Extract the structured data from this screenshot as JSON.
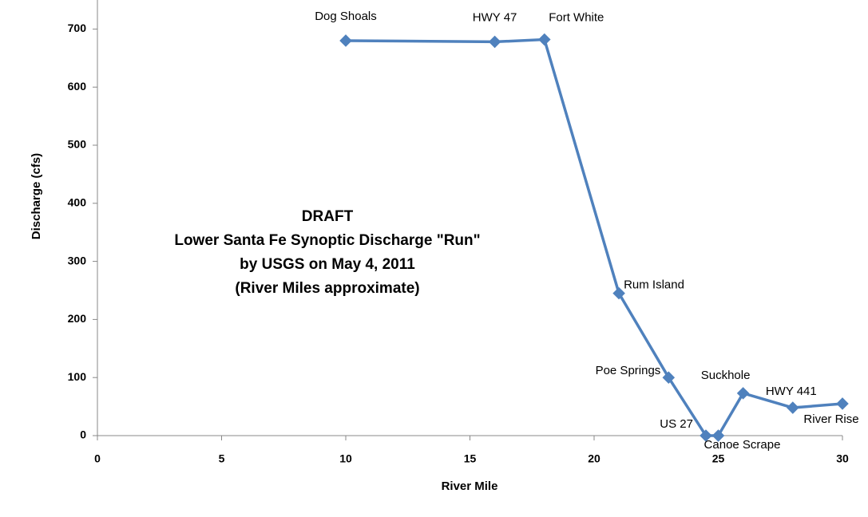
{
  "chart_data": {
    "type": "line",
    "annotation": [
      "DRAFT",
      "Lower Santa Fe Synoptic Discharge \"Run\"",
      "by USGS on May 4, 2011",
      "(River Miles approximate)"
    ],
    "x_label": "River Mile",
    "y_label": "Discharge (cfs)",
    "series": [
      {
        "name": "Discharge",
        "color": "#4f81bd",
        "x": [
          10,
          16,
          18,
          21,
          23,
          24.5,
          25,
          26,
          28,
          30
        ],
        "values": [
          680,
          678,
          682,
          245,
          100,
          0,
          0,
          73,
          48,
          55
        ],
        "labels": [
          "Dog Shoals",
          "HWY 47",
          "Fort White",
          "Rum Island",
          "Poe Springs",
          "US 27",
          "Canoe Scrape",
          "Suckhole",
          "HWY 441",
          "River Rise"
        ]
      }
    ],
    "xlim": [
      0,
      30
    ],
    "xticks": [
      0,
      5,
      10,
      15,
      20,
      25,
      30
    ],
    "ylim": [
      0,
      750
    ],
    "yticks": [
      0,
      100,
      200,
      300,
      400,
      500,
      600,
      700
    ]
  }
}
